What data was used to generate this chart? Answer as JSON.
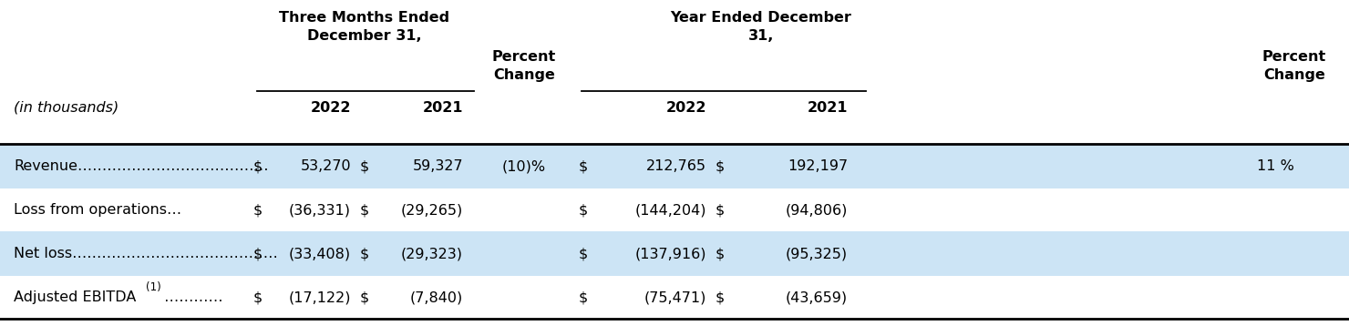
{
  "background_color": "#ffffff",
  "highlight_color": "#cce4f5",
  "figsize": [
    14.8,
    3.58
  ],
  "dpi": 100,
  "header1_three_months": "Three Months Ended\nDecember 31,",
  "header1_year": "Year Ended December\n31,",
  "header1_pct": "Percent\nChange",
  "header2_in_thousands": "(in thousands)",
  "header2_2022": "2022",
  "header2_2021": "2021",
  "rows": [
    {
      "label": "Revenue",
      "dots": "…………………………………",
      "q4_dollar": "$",
      "q4_2022": "53,270",
      "q4_dollar2": "$",
      "q4_2021": "59,327",
      "q4_pct": "(10)%",
      "yr_dollar": "$",
      "yr_2022": "212,765",
      "yr_dollar2": "$",
      "yr_2021": "192,197",
      "yr_pct": "11 %",
      "highlight": true
    },
    {
      "label": "Loss from operations",
      "dots": "…",
      "q4_dollar": "$",
      "q4_2022": "(36,331)",
      "q4_dollar2": "$",
      "q4_2021": "(29,265)",
      "q4_pct": "",
      "yr_dollar": "$",
      "yr_2022": "(144,204)",
      "yr_dollar2": "$",
      "yr_2021": "(94,806)",
      "yr_pct": "",
      "highlight": false
    },
    {
      "label": "Net loss",
      "dots": "……………………………………",
      "q4_dollar": "$",
      "q4_2022": "(33,408)",
      "q4_dollar2": "$",
      "q4_2021": "(29,323)",
      "q4_pct": "",
      "yr_dollar": "$",
      "yr_2022": "(137,916)",
      "yr_dollar2": "$",
      "yr_2021": "(95,325)",
      "yr_pct": "",
      "highlight": true
    },
    {
      "label": "Adjusted EBITDA",
      "superscript": "(1)",
      "dots": " …………",
      "q4_dollar": "$",
      "q4_2022": "(17,122)",
      "q4_dollar2": "$",
      "q4_2021": "(7,840)",
      "q4_pct": "",
      "yr_dollar": "$",
      "yr_2022": "(75,471)",
      "yr_dollar2": "$",
      "yr_2021": "(43,659)",
      "yr_pct": "",
      "highlight": false
    }
  ],
  "font_size": 11.5,
  "font_size_small": 8.5,
  "line_color": "#000000",
  "text_color": "#000000"
}
